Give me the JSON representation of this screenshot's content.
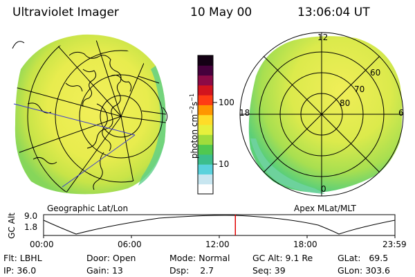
{
  "header": {
    "title": "Ultraviolet Imager",
    "date": "10 May 00",
    "time": "13:06:04 UT"
  },
  "colorbar": {
    "unit": "photon cm",
    "unit_exp1": "−2",
    "unit_s": "s",
    "unit_exp2": "−1",
    "tick_100": "100",
    "tick_10": "10",
    "colors": [
      "#ffffff",
      "#c8e6f0",
      "#5ad2dc",
      "#3cbe8c",
      "#50c850",
      "#a0dc3c",
      "#e6f03c",
      "#ffdc28",
      "#ff9600",
      "#ff3c14",
      "#d2141e",
      "#8c0a46",
      "#46003c",
      "#140014"
    ]
  },
  "geo_panel": {
    "label": "Geographic Lat/Lon"
  },
  "apex_panel": {
    "label": "Apex  MLat/MLT",
    "mlt_12": "12",
    "mlt_18": "18",
    "mlt_6": "6",
    "mlt_0": "0",
    "lat_60": "60",
    "lat_70": "70",
    "lat_80": "80"
  },
  "altitude_plot": {
    "ylabel": "GC Alt",
    "ytick_top": "9.0",
    "ytick_bottom": "1.8",
    "xticks": [
      "00:00",
      "06:00",
      "12:00",
      "18:00",
      "23:59"
    ],
    "current_marker_hours": 13.1
  },
  "info": {
    "flt_label": "Flt:",
    "flt_value": "LBHL",
    "door_label": "Door:",
    "door_value": "Open",
    "mode_label": "Mode:",
    "mode_value": "Normal",
    "gcalt_label": "GC Alt:",
    "gcalt_value": "9.1 Re",
    "glat_label": "GLat:",
    "glat_value": "69.5",
    "ip_label": "IP:",
    "ip_value": "36.0",
    "gain_label": "Gain:",
    "gain_value": "13",
    "dsp_label": "Dsp:",
    "dsp_value": "2.7",
    "seq_label": "Seq:",
    "seq_value": "39",
    "glon_label": "GLon:",
    "glon_value": "303.6"
  }
}
